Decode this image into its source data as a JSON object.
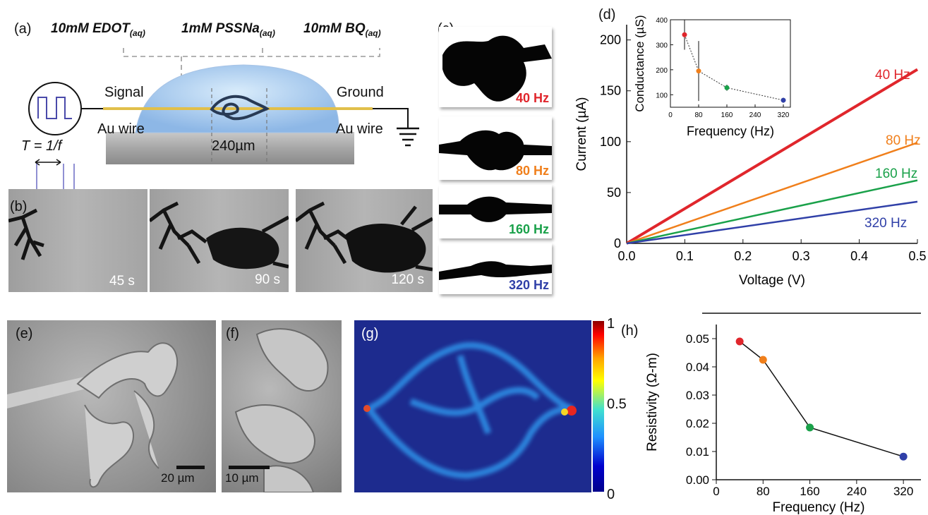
{
  "panel_labels": {
    "a": "(a)",
    "b": "(b)",
    "c": "(c)",
    "d": "(d)",
    "e": "(e)",
    "f": "(f)",
    "g": "(g)",
    "h": "(h)"
  },
  "schematic": {
    "reagent1_main": "10mM EDOT",
    "reagent1_sub": "(aq)",
    "reagent2_main": "1mM PSSNa",
    "reagent2_sub": "(aq)",
    "reagent3_main": "10mM BQ",
    "reagent3_sub": "(aq)",
    "signal": "Signal",
    "ground": "Ground",
    "au_left": "Au wire",
    "au_right": "Au wire",
    "gap": "240µm",
    "period": "T = 1/f"
  },
  "timelapse": {
    "t1": "45 s",
    "t2": "90 s",
    "t3": "120 s"
  },
  "silhouettes": [
    {
      "label": "40 Hz",
      "color": "#e0262c"
    },
    {
      "label": "80 Hz",
      "color": "#f07f1b"
    },
    {
      "label": "160 Hz",
      "color": "#1aa14a"
    },
    {
      "label": "320 Hz",
      "color": "#3040a8"
    }
  ],
  "sem": {
    "scale_e": "20 µm",
    "scale_f": "10 µm"
  },
  "heatmap": {
    "max": "1",
    "mid": "0.5",
    "min": "0"
  },
  "chart_data": [
    {
      "id": "d-main",
      "type": "line",
      "xlabel": "Voltage (V)",
      "ylabel": "Current (µA)",
      "xlim": [
        0,
        0.5
      ],
      "ylim": [
        0,
        215
      ],
      "xticks": [
        "0.0",
        "0.1",
        "0.2",
        "0.3",
        "0.4",
        "0.5"
      ],
      "yticks": [
        "0",
        "50",
        "100",
        "150",
        "200"
      ],
      "series": [
        {
          "name": "40 Hz",
          "color": "#e0262c",
          "x": [
            0,
            0.5
          ],
          "y": [
            0,
            171
          ]
        },
        {
          "name": "80 Hz",
          "color": "#f07f1b",
          "x": [
            0,
            0.5
          ],
          "y": [
            0,
            99
          ]
        },
        {
          "name": "160 Hz",
          "color": "#1aa14a",
          "x": [
            0,
            0.5
          ],
          "y": [
            0,
            62
          ]
        },
        {
          "name": "320 Hz",
          "color": "#3040a8",
          "x": [
            0,
            0.5
          ],
          "y": [
            0,
            41
          ]
        }
      ]
    },
    {
      "id": "d-inset",
      "type": "scatter",
      "xlabel": "Frequency (Hz)",
      "ylabel": "Conductance (µS)",
      "xlim": [
        0,
        340
      ],
      "ylim": [
        50,
        400
      ],
      "xticks": [
        "0",
        "80",
        "160",
        "240",
        "320"
      ],
      "yticks": [
        "100",
        "200",
        "300",
        "400"
      ],
      "points": [
        {
          "x": 40,
          "y": 340,
          "err": 60,
          "color": "#e0262c"
        },
        {
          "x": 80,
          "y": 195,
          "err": 120,
          "color": "#f07f1b"
        },
        {
          "x": 160,
          "y": 128,
          "err": 12,
          "color": "#1aa14a"
        },
        {
          "x": 320,
          "y": 78,
          "err": 10,
          "color": "#3040a8"
        }
      ]
    },
    {
      "id": "h",
      "type": "line",
      "xlabel": "Frequency (Hz)",
      "ylabel": "Resistivity (Ω-m)",
      "xlim": [
        0,
        350
      ],
      "ylim": [
        0,
        0.055
      ],
      "xticks": [
        "0",
        "80",
        "160",
        "240",
        "320"
      ],
      "yticks": [
        "0.00",
        "0.01",
        "0.02",
        "0.03",
        "0.04",
        "0.05"
      ],
      "points": [
        {
          "x": 40,
          "y": 0.049,
          "color": "#e0262c"
        },
        {
          "x": 80,
          "y": 0.0425,
          "color": "#f07f1b"
        },
        {
          "x": 160,
          "y": 0.0185,
          "color": "#1aa14a"
        },
        {
          "x": 320,
          "y": 0.0082,
          "color": "#3040a8"
        }
      ]
    }
  ]
}
